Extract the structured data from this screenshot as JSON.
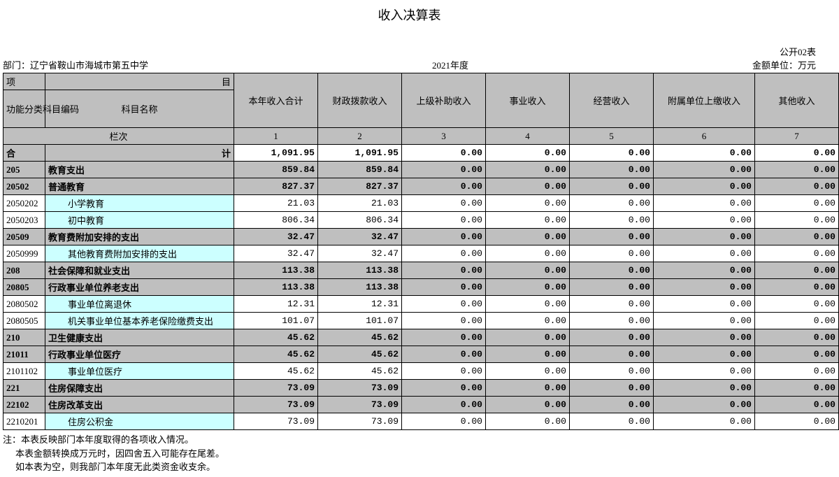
{
  "title": "收入决算表",
  "form_no": "公开02表",
  "dept_label": "部门：",
  "dept_name": "辽宁省鞍山市海城市第五中学",
  "year": "2021年度",
  "unit": "金额单位：万元",
  "header": {
    "proj": "项",
    "mu": "目",
    "code": "功能分类科目编码",
    "name": "科目名称",
    "cols": [
      "本年收入合计",
      "财政拨款收入",
      "上级补助收入",
      "事业收入",
      "经营收入",
      "附属单位上缴收入",
      "其他收入"
    ]
  },
  "lanci_label": "栏次",
  "lanci": [
    "1",
    "2",
    "3",
    "4",
    "5",
    "6",
    "7"
  ],
  "sum_label_l": "合",
  "sum_label_r": "计",
  "sum_values": [
    "1,091.95",
    "1,091.95",
    "0.00",
    "0.00",
    "0.00",
    "0.00",
    "0.00"
  ],
  "rows": [
    {
      "style": "grey",
      "code": "205",
      "name": "教育支出",
      "v": [
        "859.84",
        "859.84",
        "0.00",
        "0.00",
        "0.00",
        "0.00",
        "0.00"
      ]
    },
    {
      "style": "grey",
      "code": "20502",
      "name": "普通教育",
      "v": [
        "827.37",
        "827.37",
        "0.00",
        "0.00",
        "0.00",
        "0.00",
        "0.00"
      ]
    },
    {
      "style": "cyan",
      "code": "2050202",
      "indent": 2,
      "name": "小学教育",
      "v": [
        "21.03",
        "21.03",
        "0.00",
        "0.00",
        "0.00",
        "0.00",
        "0.00"
      ]
    },
    {
      "style": "cyan",
      "code": "2050203",
      "indent": 2,
      "name": "初中教育",
      "v": [
        "806.34",
        "806.34",
        "0.00",
        "0.00",
        "0.00",
        "0.00",
        "0.00"
      ]
    },
    {
      "style": "grey",
      "code": "20509",
      "name": "教育费附加安排的支出",
      "v": [
        "32.47",
        "32.47",
        "0.00",
        "0.00",
        "0.00",
        "0.00",
        "0.00"
      ]
    },
    {
      "style": "cyan",
      "code": "2050999",
      "indent": 2,
      "name": "其他教育费附加安排的支出",
      "v": [
        "32.47",
        "32.47",
        "0.00",
        "0.00",
        "0.00",
        "0.00",
        "0.00"
      ]
    },
    {
      "style": "grey",
      "code": "208",
      "name": "社会保障和就业支出",
      "v": [
        "113.38",
        "113.38",
        "0.00",
        "0.00",
        "0.00",
        "0.00",
        "0.00"
      ]
    },
    {
      "style": "grey",
      "code": "20805",
      "name": "行政事业单位养老支出",
      "v": [
        "113.38",
        "113.38",
        "0.00",
        "0.00",
        "0.00",
        "0.00",
        "0.00"
      ]
    },
    {
      "style": "cyan",
      "code": "2080502",
      "indent": 2,
      "name": "事业单位离退休",
      "v": [
        "12.31",
        "12.31",
        "0.00",
        "0.00",
        "0.00",
        "0.00",
        "0.00"
      ]
    },
    {
      "style": "cyan",
      "code": "2080505",
      "indent": 2,
      "name": "机关事业单位基本养老保险缴费支出",
      "v": [
        "101.07",
        "101.07",
        "0.00",
        "0.00",
        "0.00",
        "0.00",
        "0.00"
      ]
    },
    {
      "style": "grey",
      "code": "210",
      "name": "卫生健康支出",
      "v": [
        "45.62",
        "45.62",
        "0.00",
        "0.00",
        "0.00",
        "0.00",
        "0.00"
      ]
    },
    {
      "style": "grey",
      "code": "21011",
      "name": "行政事业单位医疗",
      "v": [
        "45.62",
        "45.62",
        "0.00",
        "0.00",
        "0.00",
        "0.00",
        "0.00"
      ]
    },
    {
      "style": "cyan",
      "code": "2101102",
      "indent": 2,
      "name": "事业单位医疗",
      "v": [
        "45.62",
        "45.62",
        "0.00",
        "0.00",
        "0.00",
        "0.00",
        "0.00"
      ]
    },
    {
      "style": "grey",
      "code": "221",
      "name": "住房保障支出",
      "v": [
        "73.09",
        "73.09",
        "0.00",
        "0.00",
        "0.00",
        "0.00",
        "0.00"
      ]
    },
    {
      "style": "grey",
      "code": "22102",
      "name": "住房改革支出",
      "v": [
        "73.09",
        "73.09",
        "0.00",
        "0.00",
        "0.00",
        "0.00",
        "0.00"
      ]
    },
    {
      "style": "cyan",
      "code": "2210201",
      "indent": 2,
      "name": "住房公积金",
      "v": [
        "73.09",
        "73.09",
        "0.00",
        "0.00",
        "0.00",
        "0.00",
        "0.00"
      ]
    }
  ],
  "notes": [
    "注：本表反映部门本年度取得的各项收入情况。",
    "本表金额转换成万元时，因四舍五入可能存在尾差。",
    "如本表为空，则我部门本年度无此类资金收支余。"
  ]
}
